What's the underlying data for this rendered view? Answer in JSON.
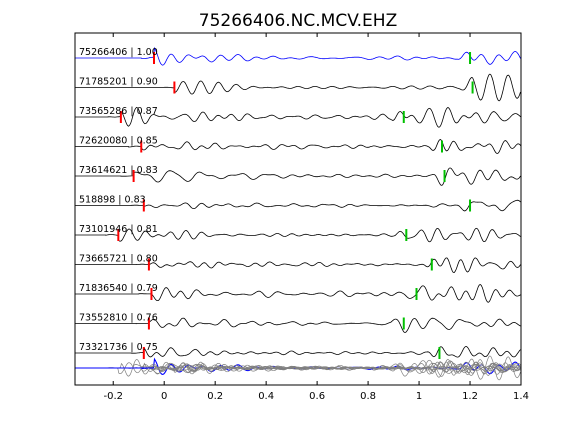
{
  "chart_data": {
    "type": "line",
    "title": "75266406.NC.MCV.EHZ",
    "xlabel": "",
    "ylabel": "",
    "xlim": [
      -0.35,
      1.4
    ],
    "xticks": [
      -0.2,
      0,
      0.2,
      0.4,
      0.6,
      0.8,
      1,
      1.2,
      1.4
    ],
    "xtick_labels": [
      "-0.2",
      "0",
      "0.2",
      "0.4",
      "0.6",
      "0.8",
      "1",
      "1.2",
      "1.4"
    ],
    "grid": false,
    "colors": {
      "reference_trace": "#0000ff",
      "trace": "#000000",
      "stack_background": "#808080",
      "p_pick": "#ff0000",
      "s_pick": "#00c000"
    },
    "traces": [
      {
        "label": "75266406 | 1.00",
        "p_pick": -0.04,
        "s_pick": 1.2,
        "reference": true
      },
      {
        "label": "71785201 | 0.90",
        "p_pick": 0.04,
        "s_pick": 1.21
      },
      {
        "label": "73565286 | 0.87",
        "p_pick": -0.17,
        "s_pick": 0.94
      },
      {
        "label": "72620080 | 0.85",
        "p_pick": -0.09,
        "s_pick": 1.09
      },
      {
        "label": "73614621 | 0.83",
        "p_pick": -0.12,
        "s_pick": 1.1
      },
      {
        "label": "518898 | 0.83",
        "p_pick": -0.08,
        "s_pick": 1.2
      },
      {
        "label": "73101946 | 0.81",
        "p_pick": -0.18,
        "s_pick": 0.95
      },
      {
        "label": "73665721 | 0.80",
        "p_pick": -0.06,
        "s_pick": 1.05
      },
      {
        "label": "71836540 | 0.79",
        "p_pick": -0.05,
        "s_pick": 0.99
      },
      {
        "label": "73552810 | 0.76",
        "p_pick": -0.06,
        "s_pick": 0.94
      },
      {
        "label": "73321736 | 0.75",
        "p_pick": -0.08,
        "s_pick": 1.08
      }
    ]
  }
}
